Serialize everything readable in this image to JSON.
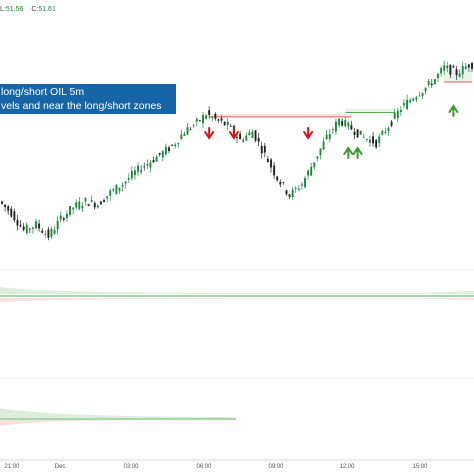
{
  "legend": {
    "items": [
      {
        "label": "L:",
        "value": "51.56"
      },
      {
        "label": "C:",
        "value": "51.61"
      }
    ]
  },
  "annotation": {
    "line1": "long/short OIL 5m",
    "line2": "vels and near the long/short zones"
  },
  "colors": {
    "up": "#1a8a3a",
    "down": "#222222",
    "resistance_line": "#e05a5a",
    "support_line": "#4caf50",
    "zone_fill": "#e6f3e6",
    "arrow_down": "#e01010",
    "arrow_up": "#3a9a30",
    "banner": "#1565a7"
  },
  "chart_data": {
    "type": "candlestick",
    "symbol": "OIL",
    "timeframe": "5m",
    "x_ticks": [
      "21:00",
      "Dec",
      "03:00",
      "06:00",
      "09:00",
      "12:00",
      "15:00"
    ],
    "price_path": [
      [
        0,
        51.14
      ],
      [
        4,
        51.1
      ],
      [
        8,
        51.04
      ],
      [
        12,
        51.06
      ],
      [
        16,
        51.02
      ],
      [
        20,
        51.08
      ],
      [
        24,
        51.12
      ],
      [
        28,
        51.14
      ],
      [
        32,
        51.13
      ],
      [
        36,
        51.17
      ],
      [
        40,
        51.2
      ],
      [
        44,
        51.24
      ],
      [
        48,
        51.27
      ],
      [
        52,
        51.3
      ],
      [
        56,
        51.33
      ],
      [
        60,
        51.38
      ],
      [
        64,
        51.41
      ],
      [
        67,
        51.44
      ],
      [
        70,
        51.42
      ],
      [
        74,
        51.4
      ],
      [
        78,
        51.35
      ],
      [
        82,
        51.38
      ],
      [
        86,
        51.3
      ],
      [
        90,
        51.22
      ],
      [
        94,
        51.16
      ],
      [
        98,
        51.2
      ],
      [
        102,
        51.28
      ],
      [
        106,
        51.36
      ],
      [
        110,
        51.42
      ],
      [
        114,
        51.39
      ],
      [
        118,
        51.36
      ],
      [
        122,
        51.34
      ],
      [
        126,
        51.4
      ],
      [
        130,
        51.46
      ],
      [
        134,
        51.5
      ],
      [
        138,
        51.53
      ],
      [
        141,
        51.56
      ],
      [
        144,
        51.6
      ],
      [
        148,
        51.58
      ],
      [
        152,
        51.61
      ]
    ],
    "resistance_level": 51.43,
    "support_level": 51.445,
    "upper_zone": [
      51.55,
      51.59
    ],
    "sell_arrows_at": [
      67,
      75,
      99
    ],
    "buy_arrows_at": [
      112,
      115,
      146
    ]
  }
}
